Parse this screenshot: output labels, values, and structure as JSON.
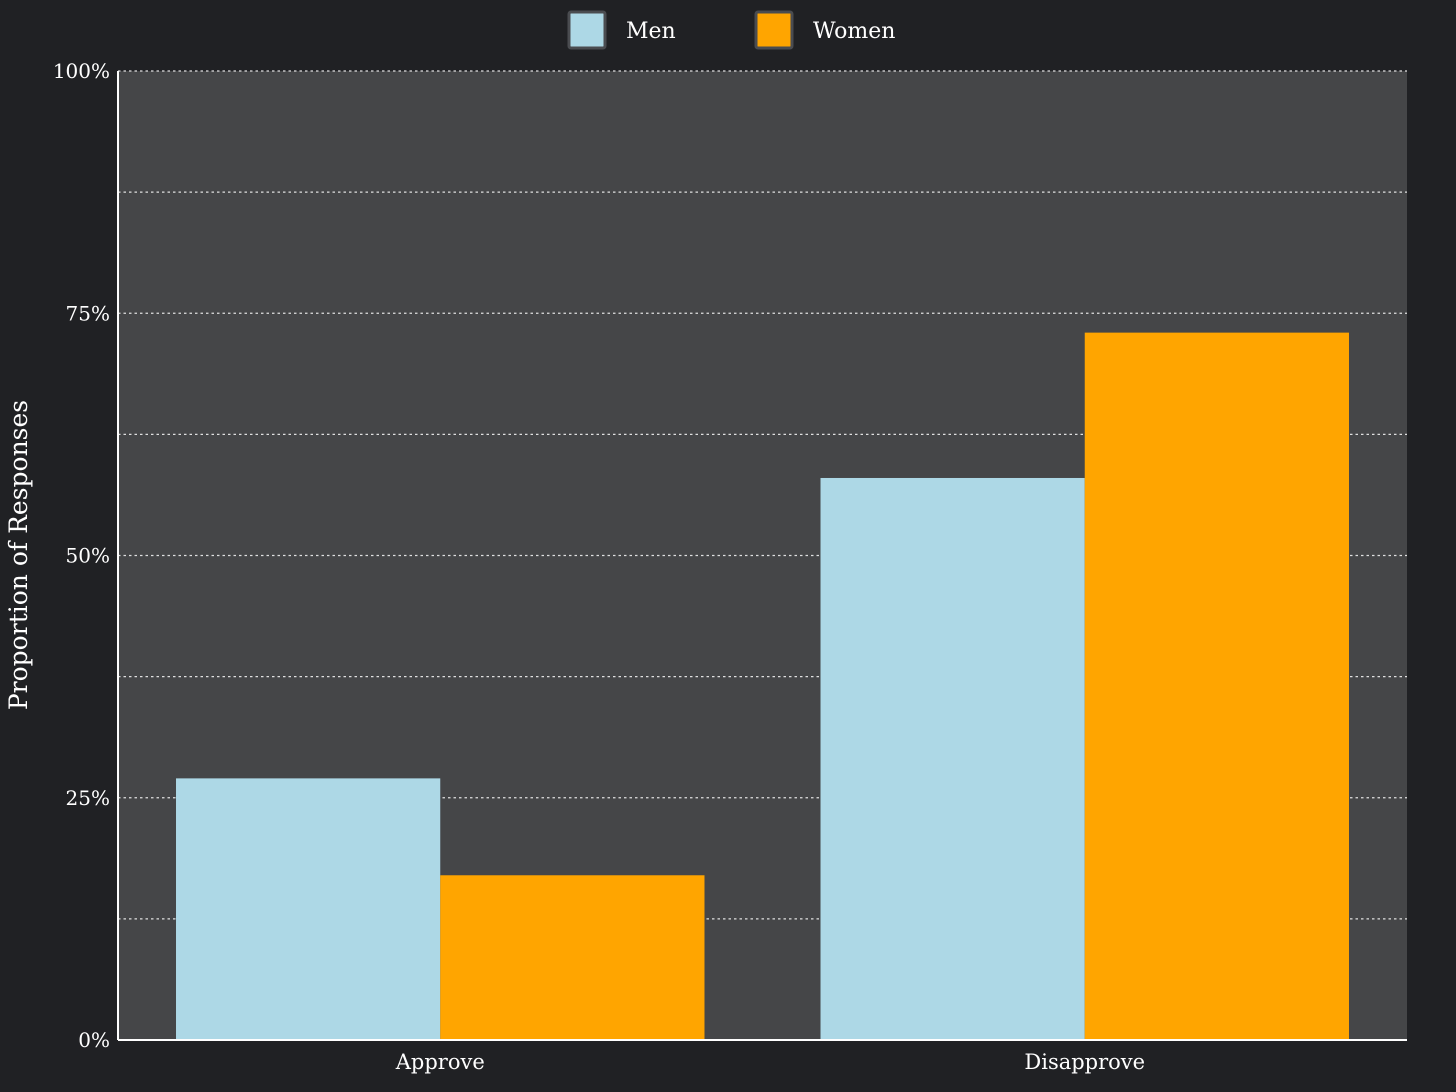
{
  "chart_data": {
    "type": "bar",
    "categories": [
      "Approve",
      "Disapprove"
    ],
    "series": [
      {
        "name": "Men",
        "color": "#add8e6",
        "values": [
          27,
          58
        ]
      },
      {
        "name": "Women",
        "color": "#ffa500",
        "values": [
          17,
          73
        ]
      }
    ],
    "ylabel": "Proportion of Responses",
    "xlabel": "",
    "ylim": [
      0,
      100
    ],
    "yticks": [
      {
        "value": 0,
        "label": "0%"
      },
      {
        "value": 25,
        "label": "25%"
      },
      {
        "value": 50,
        "label": "50%"
      },
      {
        "value": 75,
        "label": "75%"
      },
      {
        "value": 100,
        "label": "100%"
      }
    ],
    "minor_gridlines": [
      12.5,
      37.5,
      62.5,
      87.5
    ],
    "grid": true,
    "legend_position": "top-center",
    "colors": {
      "page_background": "#202124",
      "plot_background": "#454648",
      "grid": "#e0e0e0",
      "axis": "#ffffff",
      "text": "#ffffff"
    }
  }
}
